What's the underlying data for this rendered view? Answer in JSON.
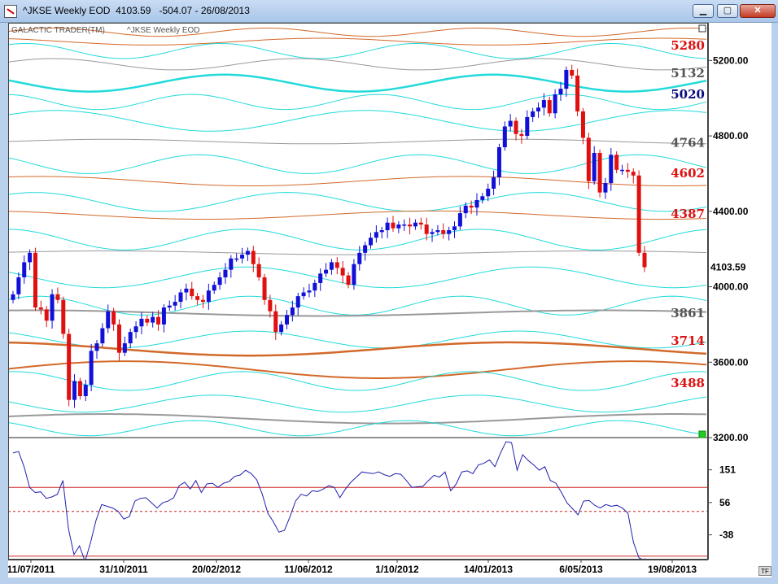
{
  "window": {
    "title": "^JKSE Weekly EOD  4103.59   -504.07 - 26/08/2013",
    "minimize_label": "▁",
    "maximize_label": "▢",
    "close_label": "✕"
  },
  "chart_header": {
    "left_label": "GALACTIC TRADER(TM)",
    "right_label": "^JKSE Weekly EOD"
  },
  "last_price_label": "4103.59",
  "tf_label": "TF",
  "colors": {
    "up_candle": "#1010d8",
    "down_candle": "#e01010",
    "cycle_cyan": "#22dada",
    "cycle_orange": "#d2692a",
    "cycle_gray": "#999999",
    "oscillator_line": "#2020b0",
    "osc_level_line": "#cc2020"
  },
  "chart_data": [
    {
      "type": "candlestick",
      "title": "",
      "y_axis": {
        "ticks": [
          3200,
          3600,
          4000,
          4400,
          4800,
          5200
        ],
        "tick_labels": [
          "3200.00",
          "3600.00",
          "4000.00",
          "4400.00",
          "4800.00",
          "5200.00"
        ],
        "range": [
          3200,
          5400
        ]
      },
      "x_axis": {
        "tick_labels": [
          "11/07/2011",
          "31/10/2011",
          "20/02/2012",
          "11/06/2012",
          "1/10/2012",
          "14/01/2013",
          "6/05/2013",
          "19/08/2013"
        ]
      },
      "level_labels": [
        {
          "value": 5280,
          "label": "5280",
          "color": "#dd1111"
        },
        {
          "value": 5132,
          "label": "5132",
          "color": "#555555"
        },
        {
          "value": 5020,
          "label": "5020",
          "color": "#0a0a80"
        },
        {
          "value": 4764,
          "label": "4764",
          "color": "#555555"
        },
        {
          "value": 4602,
          "label": "4602",
          "color": "#dd1111"
        },
        {
          "value": 4387,
          "label": "4387",
          "color": "#dd1111"
        },
        {
          "value": 3861,
          "label": "3861",
          "color": "#555555"
        },
        {
          "value": 3714,
          "label": "3714",
          "color": "#dd1111"
        },
        {
          "value": 3488,
          "label": "3488",
          "color": "#dd1111"
        }
      ],
      "series": [
        {
          "name": "",
          "close_path": [
            3960,
            4050,
            4130,
            4180,
            3890,
            3880,
            3820,
            3960,
            3930,
            3750,
            3400,
            3500,
            3420,
            3480,
            3660,
            3700,
            3780,
            3870,
            3800,
            3650,
            3700,
            3760,
            3790,
            3830,
            3810,
            3840,
            3800,
            3890,
            3900,
            3920,
            3970,
            3990,
            3950,
            3930,
            3920,
            3980,
            4010,
            4050,
            4090,
            4150,
            4150,
            4170,
            4190,
            4120,
            4050,
            3930,
            3870,
            3760,
            3800,
            3850,
            3890,
            3950,
            3970,
            3980,
            4020,
            4070,
            4090,
            4130,
            4100,
            4060,
            4010,
            4120,
            4180,
            4220,
            4260,
            4290,
            4300,
            4340,
            4310,
            4330,
            4330,
            4320,
            4340,
            4330,
            4280,
            4290,
            4300,
            4280,
            4300,
            4320,
            4390,
            4430,
            4420,
            4460,
            4480,
            4520,
            4580,
            4740,
            4850,
            4880,
            4810,
            4800,
            4900,
            4930,
            4950,
            4990,
            4920,
            5020,
            5050,
            5150,
            5120,
            4930,
            4790,
            4560,
            4710,
            4500,
            4550,
            4700,
            4620,
            4620,
            4610,
            4590,
            4180,
            4103.59
          ]
        }
      ]
    },
    {
      "type": "line",
      "title": "",
      "y_axis": {
        "ticks": [
          -38,
          56,
          151
        ],
        "tick_labels": [
          "-38",
          "56",
          "151"
        ],
        "range": [
          -110,
          240
        ]
      },
      "reference_levels": {
        "upper": 100,
        "middle": 30,
        "lower": -100
      },
      "series": [
        {
          "name": "",
          "values": [
            200,
            204,
            160,
            100,
            85,
            87,
            68,
            72,
            80,
            120,
            -20,
            -95,
            -70,
            -115,
            -60,
            5,
            50,
            45,
            40,
            30,
            8,
            15,
            60,
            68,
            70,
            55,
            40,
            55,
            60,
            70,
            105,
            115,
            95,
            120,
            85,
            110,
            112,
            100,
            112,
            117,
            132,
            136,
            150,
            140,
            122,
            80,
            25,
            0,
            -30,
            -25,
            15,
            60,
            80,
            75,
            90,
            88,
            95,
            105,
            100,
            70,
            95,
            115,
            130,
            145,
            142,
            140,
            145,
            137,
            132,
            140,
            138,
            120,
            100,
            102,
            103,
            120,
            135,
            130,
            145,
            90,
            110,
            145,
            148,
            140,
            165,
            170,
            180,
            160,
            200,
            233,
            230,
            150,
            195,
            178,
            165,
            150,
            160,
            120,
            112,
            85,
            55,
            38,
            20,
            60,
            62,
            48,
            40,
            50,
            45,
            48,
            40,
            25,
            -60,
            -105,
            -112
          ]
        }
      ]
    }
  ]
}
